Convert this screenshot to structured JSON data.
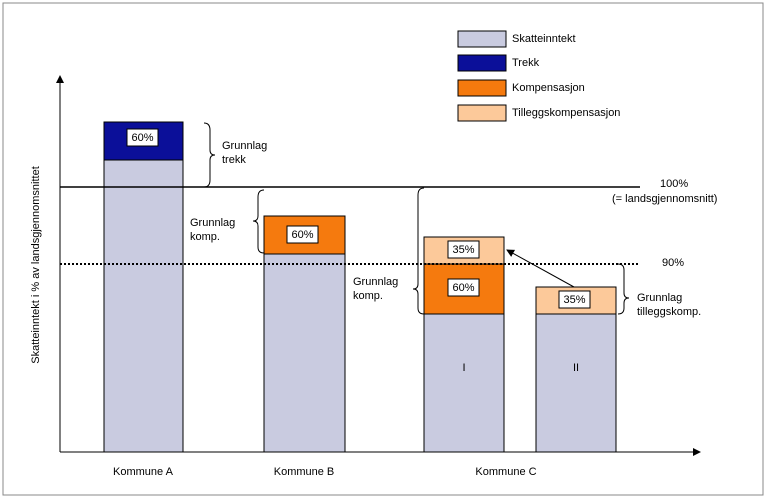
{
  "legend": [
    "Skatteinntekt",
    "Trekk",
    "Kompensasjon",
    "Tilleggskompensasjon"
  ],
  "y_axis_label": "Skatteinntekt i % av landsgjennomsnittet",
  "categories": [
    "Kommune A",
    "Kommune B",
    "Kommune C"
  ],
  "reference_lines": {
    "average": [
      "100%",
      "(= landsgjennomsnitt)"
    ],
    "threshold": "90%"
  },
  "bars": {
    "kommune_a": {
      "trekk_label": "60%"
    },
    "kommune_b": {
      "kompensasjon_label": "60%"
    },
    "kommune_c_i": {
      "name": "I",
      "kompensasjon_label": "60%",
      "tillegg_label": "35%"
    },
    "kommune_c_ii": {
      "name": "II",
      "tillegg_label": "35%"
    }
  },
  "annotations": {
    "grunnlag_trekk": [
      "Grunnlag",
      "trekk"
    ],
    "grunnlag_komp_b": [
      "Grunnlag",
      "komp."
    ],
    "grunnlag_komp_c": [
      "Grunnlag",
      "komp."
    ],
    "grunnlag_tillegg": [
      "Grunnlag",
      "tilleggskomp."
    ]
  }
}
